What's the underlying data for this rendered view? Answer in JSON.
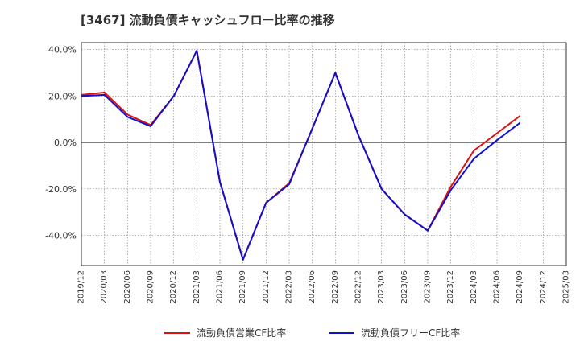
{
  "chart_data": {
    "type": "line",
    "title": "[3467]  流動負債キャッシュフロー比率の推移",
    "xlabel": "",
    "ylabel": "",
    "x": [
      "2019/12",
      "2020/03",
      "2020/06",
      "2020/09",
      "2020/12",
      "2021/03",
      "2021/06",
      "2021/09",
      "2021/12",
      "2022/03",
      "2022/06",
      "2022/09",
      "2022/12",
      "2023/03",
      "2023/06",
      "2023/09",
      "2023/12",
      "2024/03",
      "2024/06",
      "2024/09",
      "2024/12",
      "2025/03"
    ],
    "x_tick_labels": [
      "2019/12",
      "2020/03",
      "2020/06",
      "2020/09",
      "2020/12",
      "2021/03",
      "2021/06",
      "2021/09",
      "2021/12",
      "2022/03",
      "2022/06",
      "2022/09",
      "2022/12",
      "2023/03",
      "2023/06",
      "2023/09",
      "2023/12",
      "2024/03",
      "2024/06",
      "2024/09",
      "2024/12",
      "2025/03"
    ],
    "y_ticks": [
      -40,
      -20,
      0,
      20,
      40
    ],
    "y_tick_labels": [
      "-40.0%",
      "-20.0%",
      "0.0%",
      "20.0%",
      "40.0%"
    ],
    "ylim": [
      -53,
      43
    ],
    "grid": true,
    "legend_position": "bottom",
    "series": [
      {
        "name": "流動負債営業CF比率",
        "color": "#dd1111",
        "values": [
          20.5,
          21.5,
          12.0,
          7.5,
          20.0,
          39.5,
          -17.0,
          -50.5,
          -26.0,
          -17.5,
          6.0,
          30.0,
          3.0,
          -20.0,
          -31.0,
          -38.0,
          -19.0,
          -3.5,
          4.0,
          11.5,
          null,
          null
        ]
      },
      {
        "name": "流動負債フリーCF比率",
        "color": "#1111cc",
        "values": [
          20.0,
          20.5,
          11.0,
          7.0,
          20.0,
          39.5,
          -17.0,
          -50.5,
          -26.0,
          -18.0,
          6.0,
          30.0,
          3.0,
          -20.0,
          -31.0,
          -38.0,
          -20.5,
          -7.0,
          1.0,
          8.5,
          null,
          null
        ]
      }
    ]
  }
}
